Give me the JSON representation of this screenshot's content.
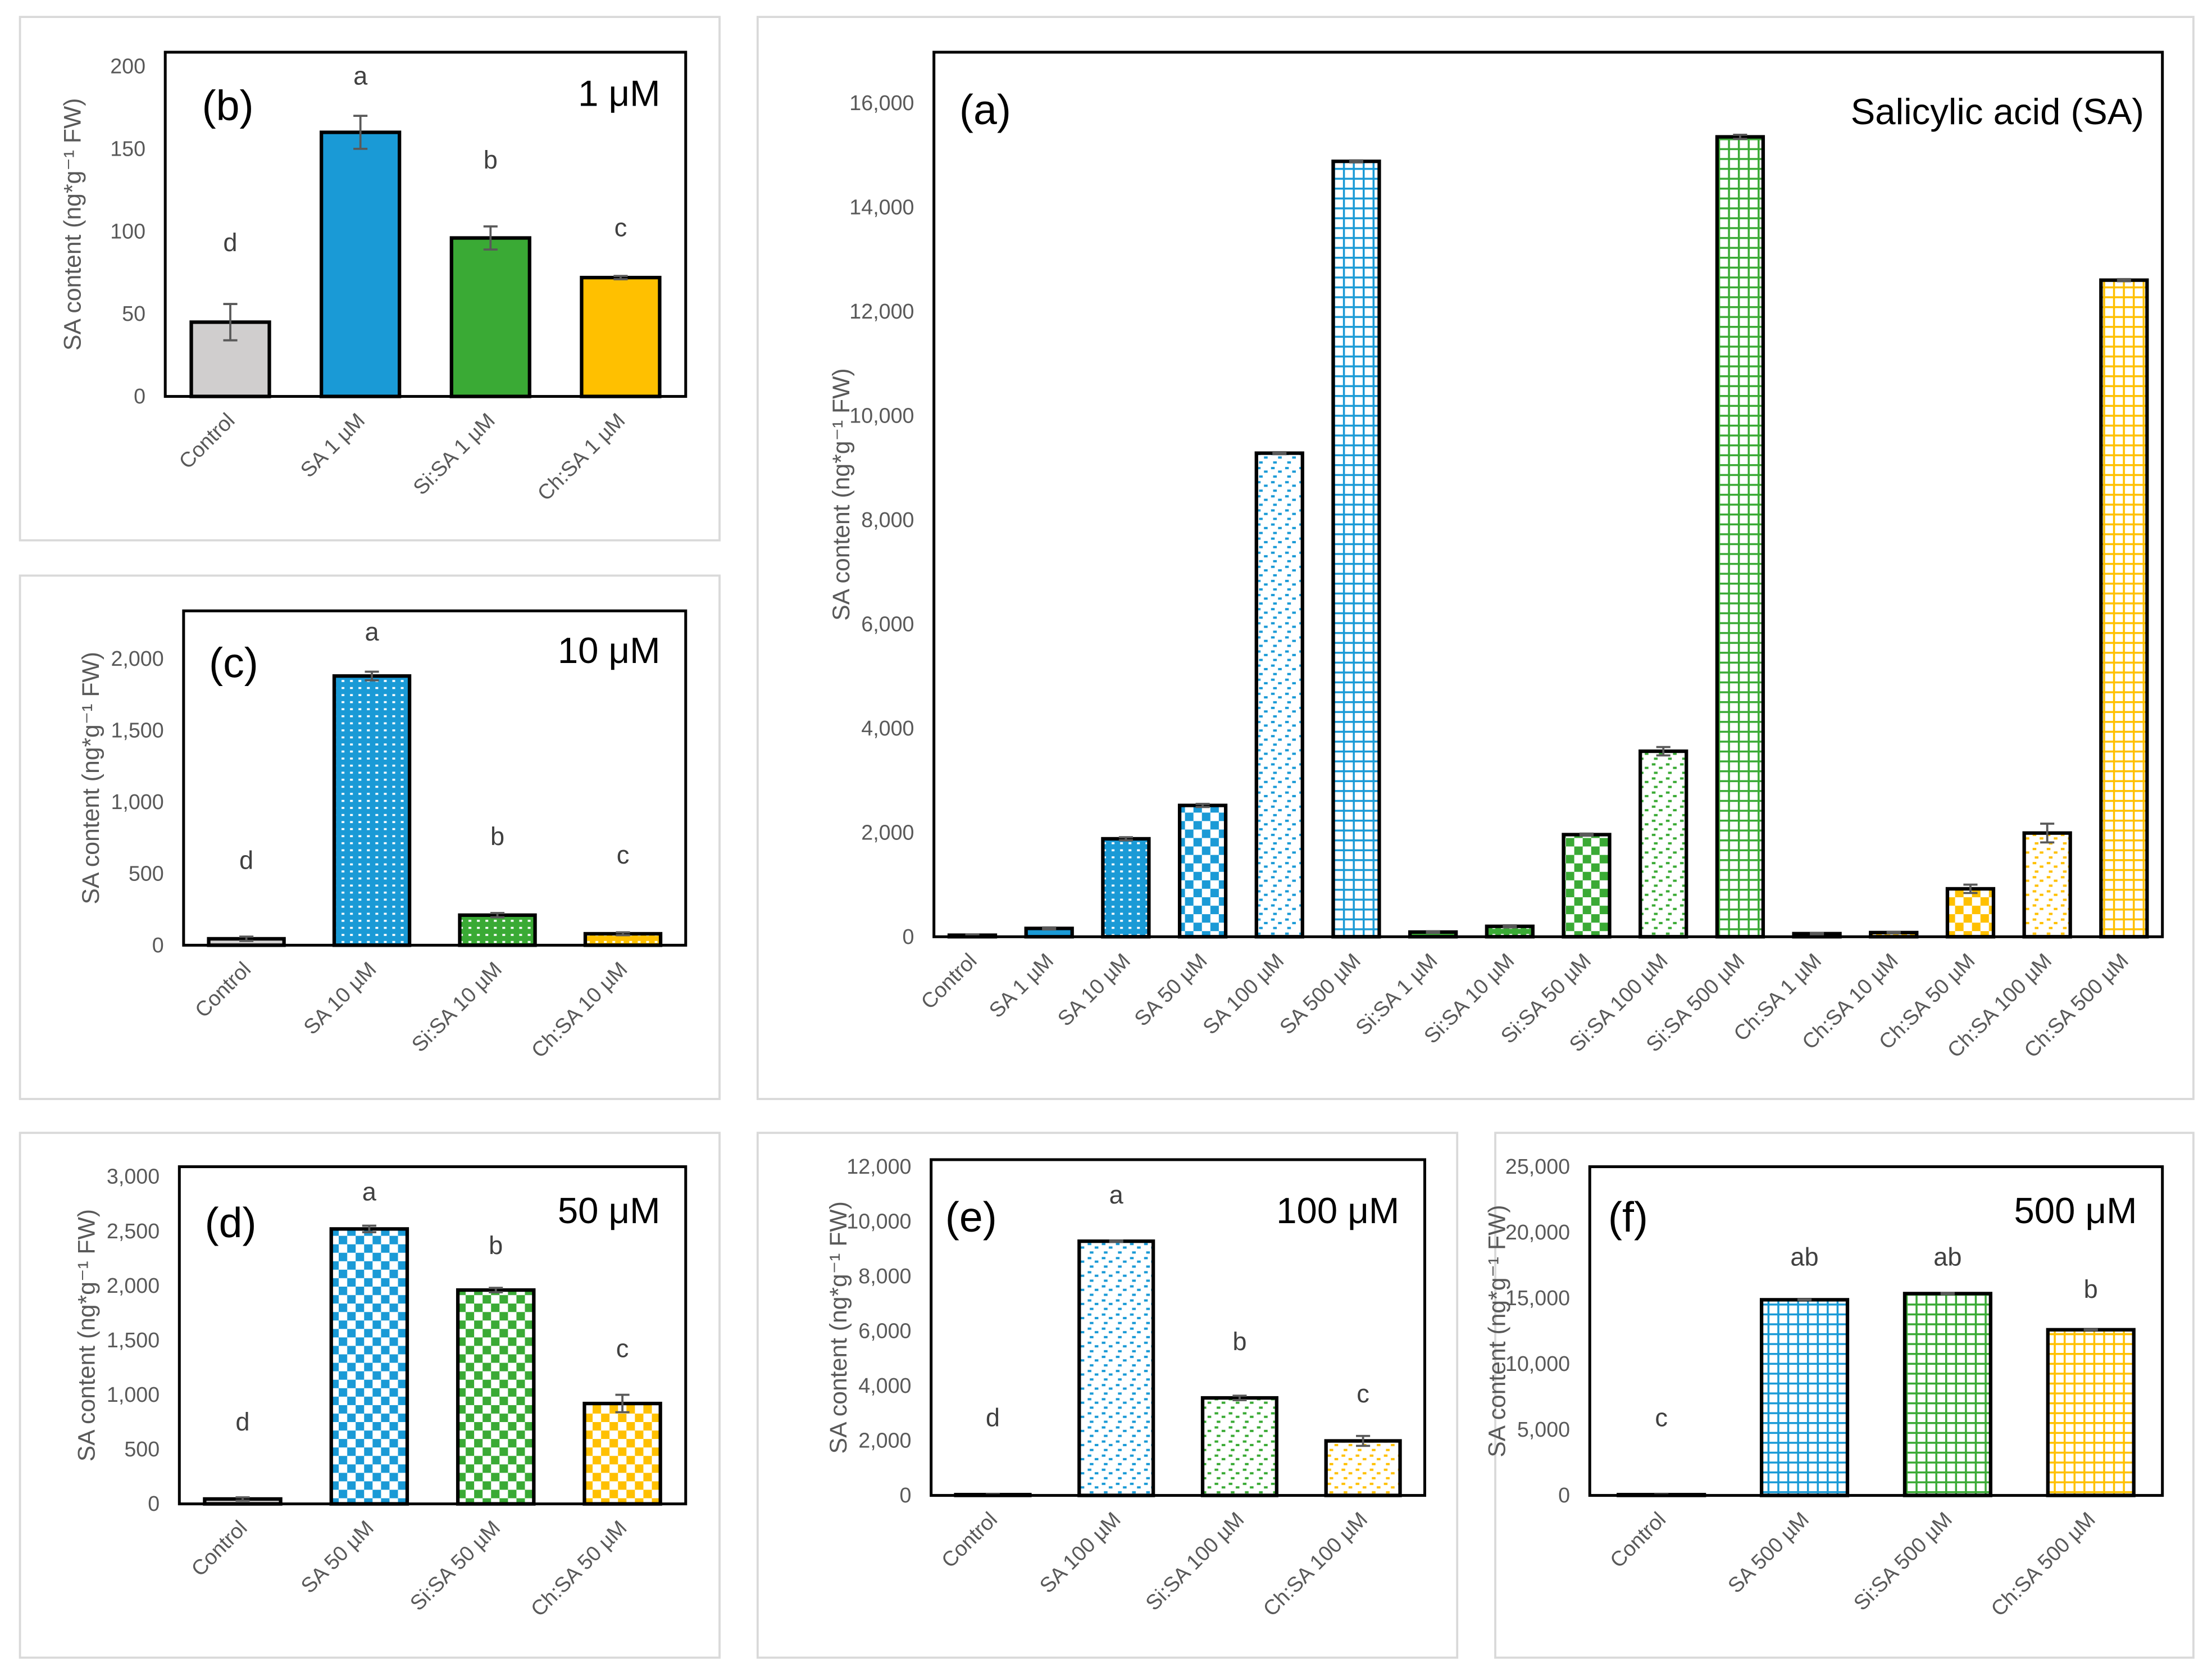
{
  "colors": {
    "control": "#d0cece",
    "SA": "#1a9ad6",
    "Si": "#3aaa35",
    "Ch": "#ffc000",
    "frame": "#d9d9d9"
  },
  "chart_data": [
    {
      "id": "a",
      "type": "bar",
      "panel_label": "(a)",
      "title": "Salicylic acid (SA)",
      "ylabel": "SA content (ng*g⁻¹ FW)",
      "ylim": [
        0,
        16000
      ],
      "ytick_step": 2000,
      "yticks": [
        "0",
        "2,000",
        "4,000",
        "6,000",
        "8,000",
        "10,000",
        "12,000",
        "14,000",
        "16,000"
      ],
      "categories": [
        "Control",
        "SA 1 µM",
        "SA 10 µM",
        "SA 50 µM",
        "SA 100 µM",
        "SA 500 µM",
        "Si:SA 1 µM",
        "Si:SA 10 µM",
        "Si:SA 50 µM",
        "Si:SA 100 µM",
        "Si:SA 500 µM",
        "Ch:SA 1 µM",
        "Ch:SA 10 µM",
        "Ch:SA 50 µM",
        "Ch:SA 100 µM",
        "Ch:SA 500 µM"
      ],
      "values": [
        30,
        160,
        1880,
        2520,
        9280,
        14880,
        90,
        200,
        1960,
        3560,
        15350,
        60,
        80,
        920,
        1990,
        12600
      ],
      "errors": [
        15,
        20,
        30,
        30,
        20,
        20,
        15,
        20,
        20,
        80,
        40,
        15,
        15,
        80,
        180,
        20
      ],
      "groups": [
        "control",
        "SA",
        "SA",
        "SA",
        "SA",
        "SA",
        "Si",
        "Si",
        "Si",
        "Si",
        "Si",
        "Ch",
        "Ch",
        "Ch",
        "Ch",
        "Ch"
      ],
      "patterns": [
        "solid",
        "solid",
        "fine",
        "checker",
        "dots",
        "grid",
        "solid",
        "fine",
        "checker",
        "dots",
        "grid",
        "solid",
        "fine",
        "checker",
        "dots",
        "grid"
      ],
      "letters": []
    },
    {
      "id": "b",
      "type": "bar",
      "panel_label": "(b)",
      "title": "1 μM",
      "ylabel": "SA content (ng*g⁻¹ FW)",
      "ylim": [
        0,
        200
      ],
      "ytick_step": 50,
      "yticks": [
        "0",
        "50",
        "100",
        "150",
        "200"
      ],
      "categories": [
        "Control",
        "SA 1 µM",
        "Si:SA 1 µM",
        "Ch:SA 1 µM"
      ],
      "values": [
        45,
        160,
        96,
        72
      ],
      "errors": [
        11,
        10,
        7,
        1
      ],
      "groups": [
        "control",
        "SA",
        "Si",
        "Ch"
      ],
      "patterns": [
        "solid",
        "solid",
        "solid",
        "solid"
      ],
      "letters": [
        "d",
        "a",
        "b",
        "c"
      ],
      "letter_y": [
        88,
        189,
        138,
        97
      ]
    },
    {
      "id": "c",
      "type": "bar",
      "panel_label": "(c)",
      "title": "10 μM",
      "ylabel": "SA content (ng*g⁻¹ FW)",
      "ylim": [
        0,
        2000
      ],
      "ytick_step": 500,
      "yticks": [
        "0",
        "500",
        "1,000",
        "1,500",
        "2,000"
      ],
      "categories": [
        "Control",
        "SA 10 µM",
        "Si:SA 10 µM",
        "Ch:SA 10 µM"
      ],
      "values": [
        45,
        1880,
        210,
        80
      ],
      "errors": [
        15,
        30,
        15,
        10
      ],
      "groups": [
        "control",
        "SA",
        "Si",
        "Ch"
      ],
      "patterns": [
        "solid",
        "fine",
        "fine",
        "fine"
      ],
      "letters": [
        "d",
        "a",
        "b",
        "c"
      ],
      "letter_y": [
        532,
        2128,
        700,
        571
      ]
    },
    {
      "id": "d",
      "type": "bar",
      "panel_label": "(d)",
      "title": "50 μM",
      "ylabel": "SA content (ng*g⁻¹ FW)",
      "ylim": [
        0,
        3000
      ],
      "ytick_step": 500,
      "yticks": [
        "0",
        "500",
        "1,000",
        "1,500",
        "2,000",
        "2,500",
        "3,000"
      ],
      "categories": [
        "Control",
        "SA 50 µM",
        "Si:SA 50 µM",
        "Ch:SA 50 µM"
      ],
      "values": [
        45,
        2520,
        1960,
        920
      ],
      "errors": [
        15,
        30,
        20,
        80
      ],
      "groups": [
        "control",
        "SA",
        "Si",
        "Ch"
      ],
      "patterns": [
        "solid",
        "checker",
        "checker",
        "checker"
      ],
      "letters": [
        "d",
        "a",
        "b",
        "c"
      ],
      "letter_y": [
        672,
        2782,
        2290,
        1345
      ]
    },
    {
      "id": "e",
      "type": "bar",
      "panel_label": "(e)",
      "title": "100 μM",
      "ylabel": "SA content (ng*g⁻¹ FW)",
      "ylim": [
        0,
        12000
      ],
      "ytick_step": 2000,
      "yticks": [
        "0",
        "2,000",
        "4,000",
        "6,000",
        "8,000",
        "10,000",
        "12,000"
      ],
      "categories": [
        "Control",
        "SA 100 µM",
        "Si:SA 100 µM",
        "Ch:SA 100 µM"
      ],
      "values": [
        30,
        9280,
        3560,
        1990
      ],
      "errors": [
        15,
        20,
        80,
        180
      ],
      "groups": [
        "control",
        "SA",
        "Si",
        "Ch"
      ],
      "patterns": [
        "solid",
        "dots",
        "dots",
        "dots"
      ],
      "letters": [
        "d",
        "a",
        "b",
        "c"
      ],
      "letter_y": [
        2524,
        10660,
        5300,
        3400
      ]
    },
    {
      "id": "f",
      "type": "bar",
      "panel_label": "(f)",
      "title": "500 μM",
      "ylabel": "SA content (ng*g⁻¹ FW)",
      "ylim": [
        0,
        25000
      ],
      "ytick_step": 5000,
      "yticks": [
        "0",
        "5,000",
        "10,000",
        "15,000",
        "20,000",
        "25,000"
      ],
      "categories": [
        "Control",
        "SA 500 µM",
        "Si:SA 500 µM",
        "Ch:SA 500 µM"
      ],
      "values": [
        60,
        14880,
        15350,
        12600
      ],
      "errors": [
        20,
        20,
        40,
        20
      ],
      "groups": [
        "control",
        "SA",
        "Si",
        "Ch"
      ],
      "patterns": [
        "solid",
        "grid",
        "grid",
        "grid"
      ],
      "letters": [
        "c",
        "ab",
        "ab",
        "b"
      ],
      "letter_y": [
        5260,
        17490,
        17490,
        15020
      ]
    }
  ]
}
